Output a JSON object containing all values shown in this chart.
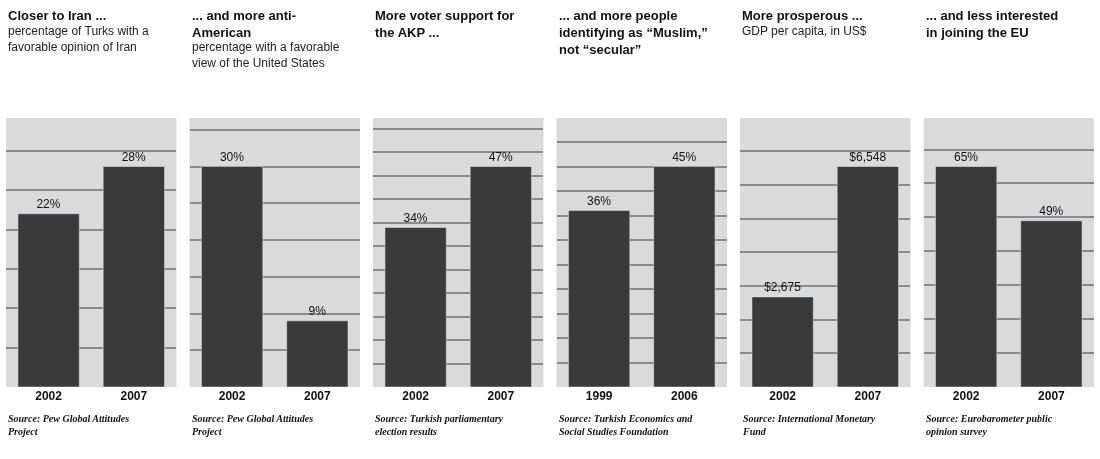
{
  "chart_data": [
    {
      "type": "bar",
      "title": "Closer to Iran ...",
      "subtitle": "percentage of Turks with a favorable opinion of Iran",
      "categories": [
        "2002",
        "2007"
      ],
      "values": [
        22,
        28
      ],
      "value_labels": [
        "22%",
        "28%"
      ],
      "color": "#3a3a3a",
      "grid": "y",
      "tick_labels": "x",
      "annotations": [
        "Source: Pew Global Attitudes Project"
      ]
    },
    {
      "type": "bar",
      "title": "... and more anti-American",
      "subtitle": "percentage with a favorable view of the United States",
      "categories": [
        "2002",
        "2007"
      ],
      "values": [
        30,
        9
      ],
      "value_labels": [
        "30%",
        "9%"
      ],
      "color": "#3a3a3a",
      "grid": "y",
      "tick_labels": "x",
      "annotations": [
        "Source: Pew Global Attitudes Project"
      ]
    },
    {
      "type": "bar",
      "title": "More voter support for the AKP ...",
      "categories": [
        "2002",
        "2007"
      ],
      "values": [
        34,
        47
      ],
      "value_labels": [
        "34%",
        "47%"
      ],
      "color": "#3a3a3a",
      "grid": "y",
      "tick_labels": "x",
      "annotations": [
        "Source: Turkish parliamentary election results"
      ]
    },
    {
      "type": "bar",
      "title": "... and more people identifying as “Muslim,” not “secular”",
      "categories": [
        "1999",
        "2006"
      ],
      "values": [
        36,
        45
      ],
      "value_labels": [
        "36%",
        "45%"
      ],
      "color": "#3a3a3a",
      "grid": "y",
      "tick_labels": "x",
      "annotations": [
        "Source: Turkish Economics and Social Studies Foundation"
      ]
    },
    {
      "type": "bar",
      "title": "More prosperous ...",
      "subtitle": "GDP per capita, in US$",
      "categories": [
        "2002",
        "2007"
      ],
      "values": [
        2675,
        6548
      ],
      "value_labels": [
        "$2,675",
        "$6,548"
      ],
      "color": "#3a3a3a",
      "grid": "y",
      "tick_labels": "x",
      "annotations": [
        "Source: International Monetary Fund"
      ]
    },
    {
      "type": "bar",
      "title": "... and less interested in joining the EU",
      "categories": [
        "2002",
        "2007"
      ],
      "values": [
        65,
        49
      ],
      "value_labels": [
        "65%",
        "49%"
      ],
      "color": "#3a3a3a",
      "grid": "y",
      "tick_labels": "x",
      "annotations": [
        "Source: Eurobarometer public opinion survey"
      ]
    }
  ]
}
